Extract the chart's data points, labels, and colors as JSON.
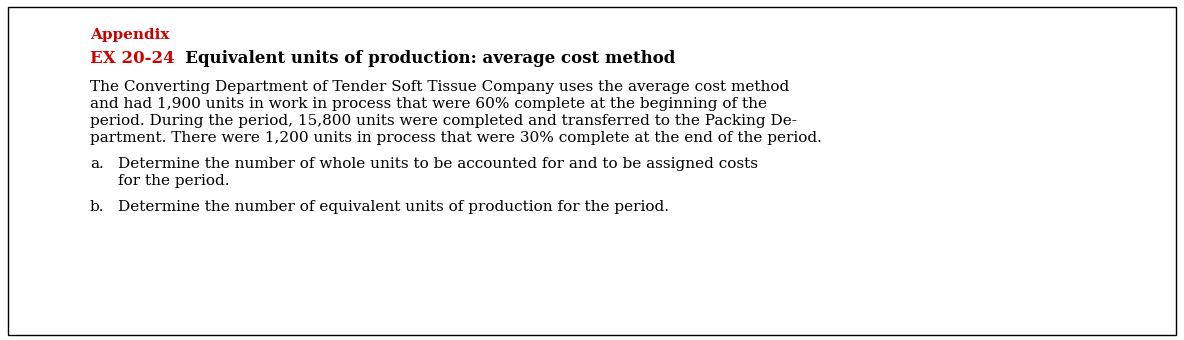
{
  "background_color": "#ffffff",
  "border_color": "#000000",
  "appendix_text": "Appendix",
  "appendix_color": "#cc0000",
  "heading_prefix": "EX 20-24",
  "heading_prefix_color": "#cc0000",
  "heading_suffix": "   Equivalent units of production: average cost method",
  "heading_suffix_color": "#000000",
  "body_line1": "The Converting Department of Tender Soft Tissue Company uses the average cost method",
  "body_line2": "and had 1,900 units in work in process that were 60% complete at the beginning of the",
  "body_line3": "period. During the period, 15,800 units were completed and transferred to the Packing De-",
  "body_line4": "partment. There were 1,200 units in process that were 30% complete at the end of the period.",
  "item_a_label": "a.",
  "item_a_line1": "Determine the number of whole units to be accounted for and to be assigned costs",
  "item_a_line2": "for the period.",
  "item_b_label": "b.",
  "item_b_line1": "Determine the number of equivalent units of production for the period.",
  "font_size_heading": 12,
  "font_size_body": 11,
  "font_size_appendix": 11,
  "figwidth": 11.84,
  "figheight": 3.4,
  "dpi": 100
}
